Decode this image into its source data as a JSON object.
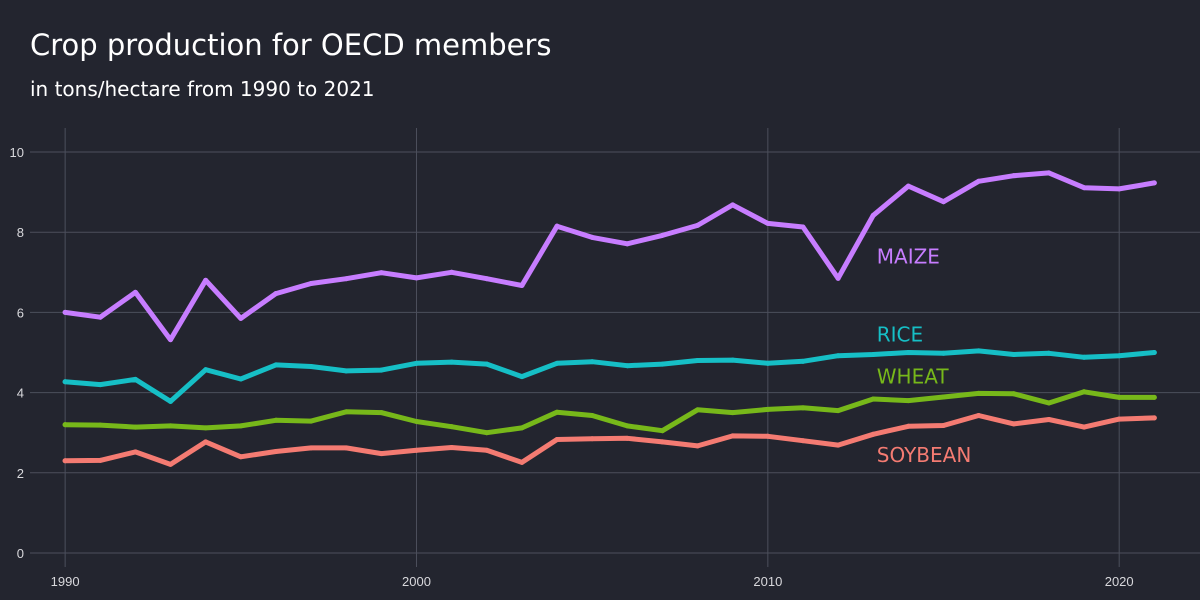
{
  "chart_data": {
    "type": "line",
    "title": "Crop production for OECD members",
    "subtitle": "in tons/hectare from 1990 to 2021",
    "xlabel": "",
    "ylabel": "",
    "xlim": [
      1989,
      2022.3
    ],
    "ylim": [
      0,
      10
    ],
    "x_ticks": [
      1990,
      2000,
      2010,
      2020
    ],
    "y_ticks": [
      0,
      2,
      4,
      6,
      8,
      10
    ],
    "grid": true,
    "legend": "labels placed at the right of each series",
    "x": [
      1990,
      1991,
      1992,
      1993,
      1994,
      1995,
      1996,
      1997,
      1998,
      1999,
      2000,
      2001,
      2002,
      2003,
      2004,
      2005,
      2006,
      2007,
      2008,
      2009,
      2010,
      2011,
      2012,
      2013,
      2014,
      2015,
      2016,
      2017,
      2018,
      2019,
      2020,
      2021
    ],
    "series": [
      {
        "name": "MAIZE",
        "color": "#c77dff",
        "label_at": [
          2013.1,
          7.4
        ],
        "values": [
          6.0,
          5.88,
          6.5,
          5.32,
          6.8,
          5.85,
          6.47,
          6.72,
          6.84,
          6.99,
          6.86,
          7.0,
          6.84,
          6.67,
          8.15,
          7.87,
          7.71,
          7.92,
          8.17,
          8.68,
          8.22,
          8.13,
          6.85,
          8.42,
          9.15,
          8.76,
          9.27,
          9.41,
          9.48,
          9.11,
          9.08,
          9.23
        ]
      },
      {
        "name": "RICE",
        "color": "#16bfc6",
        "label_at": [
          2013.1,
          5.45
        ],
        "values": [
          4.27,
          4.2,
          4.33,
          3.78,
          4.57,
          4.34,
          4.69,
          4.65,
          4.54,
          4.56,
          4.73,
          4.76,
          4.71,
          4.4,
          4.73,
          4.77,
          4.67,
          4.71,
          4.8,
          4.81,
          4.73,
          4.78,
          4.92,
          4.95,
          5.0,
          4.98,
          5.04,
          4.95,
          4.98,
          4.88,
          4.92,
          5.0
        ]
      },
      {
        "name": "WHEAT",
        "color": "#77b81a",
        "label_at": [
          2013.1,
          4.4
        ],
        "values": [
          3.2,
          3.19,
          3.14,
          3.17,
          3.12,
          3.17,
          3.31,
          3.29,
          3.52,
          3.5,
          3.28,
          3.15,
          3.0,
          3.12,
          3.51,
          3.43,
          3.17,
          3.05,
          3.57,
          3.5,
          3.58,
          3.62,
          3.55,
          3.84,
          3.8,
          3.89,
          3.98,
          3.97,
          3.74,
          4.02,
          3.88,
          3.88
        ]
      },
      {
        "name": "SOYBEAN",
        "color": "#f47b72",
        "label_at": [
          2013.1,
          2.45
        ],
        "values": [
          2.3,
          2.31,
          2.52,
          2.21,
          2.77,
          2.4,
          2.53,
          2.62,
          2.62,
          2.48,
          2.56,
          2.63,
          2.56,
          2.26,
          2.83,
          2.85,
          2.86,
          2.77,
          2.67,
          2.92,
          2.91,
          2.8,
          2.69,
          2.96,
          3.16,
          3.18,
          3.43,
          3.22,
          3.33,
          3.14,
          3.34,
          3.37
        ]
      }
    ]
  },
  "colors": {
    "background": "#23252f",
    "grid": "#4c4f5c",
    "text": "#ffffff",
    "tick_text": "#d8d8dc"
  }
}
